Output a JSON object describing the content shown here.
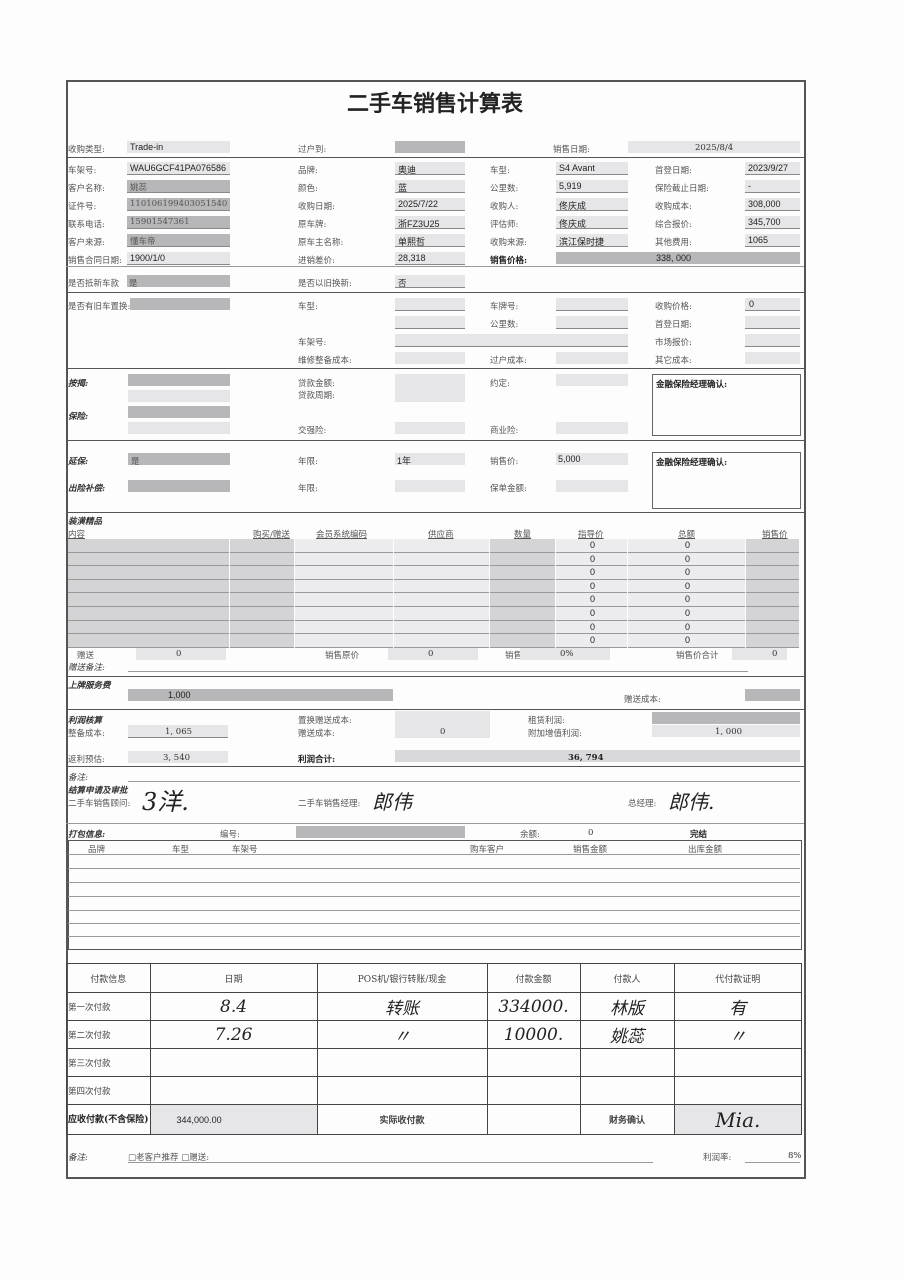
{
  "title": "二手车销售计算表",
  "header": {
    "purchase_type_label": "收购类型:",
    "purchase_type": "Trade-in",
    "transfer_to_label": "过户到:",
    "sale_date_label": "销售日期:",
    "sale_date": "2025/8/4"
  },
  "vehicle": {
    "vin_label": "车架号:",
    "vin": "WAU6GCF41PA076586",
    "customer_label": "客户名称:",
    "customer": "姚蕊",
    "id_label": "证件号:",
    "id": "110106199403051540",
    "phone_label": "联系电话:",
    "phone": "15901547361",
    "source_label": "客户来源:",
    "source": "懂车帝",
    "contract_date_label": "销售合同日期:",
    "contract_date": "1900/1/0",
    "brand_label": "品牌:",
    "brand": "奥迪",
    "color_label": "颜色:",
    "color": "蓝",
    "purchase_date_label": "收购日期:",
    "purchase_date": "2025/7/22",
    "orig_plate_label": "原车牌:",
    "orig_plate": "浙FZ3U25",
    "orig_owner_label": "原车主名称:",
    "orig_owner": "单熙哲",
    "margin_label": "进销差价:",
    "margin": "28,318",
    "model_label": "车型:",
    "model": "S4 Avant",
    "mileage_label": "公里数:",
    "mileage": "5,919",
    "buyer_label": "收购人:",
    "buyer": "佟庆成",
    "appraiser_label": "评估师:",
    "appraiser": "佟庆成",
    "purchase_source_label": "收购来源:",
    "purchase_source": "滨江保时捷",
    "sale_price_label": "销售价格:",
    "sale_price": "338, 000",
    "first_reg_label": "首登日期:",
    "first_reg": "2023/9/27",
    "ins_expiry_label": "保险截止日期:",
    "ins_expiry": "-",
    "purchase_cost_label": "收购成本:",
    "purchase_cost": "308,000",
    "quote_label": "综合报价:",
    "quote": "345,700",
    "other_fee_label": "其他费用:",
    "other_fee": "1065",
    "offset_label": "是否抵新车款",
    "offset": "是",
    "tradein_new_label": "是否以旧换新:",
    "tradein_new": "否"
  },
  "old_car": {
    "has_label": "是否有旧车置换:",
    "model_label": "车型:",
    "plate_label": "车牌号:",
    "price_label": "收购价格:",
    "price": "0",
    "mileage_label": "公里数:",
    "first_reg_label": "首登日期:",
    "vin_label": "车架号:",
    "market_label": "市场报价:",
    "repair_label": "维修整备成本:",
    "transfer_label": "过户成本:",
    "other_label": "其它成本:"
  },
  "finance": {
    "mortgage_label": "按揭:",
    "loan_amount_label": "贷款金额:",
    "loan_term_label": "贷款周期:",
    "agreement_label": "约定:",
    "confirm_label": "金融保险经理确认:",
    "insurance_label": "保险:",
    "compulsory_label": "交强险:",
    "commercial_label": "商业险:",
    "warranty_label": "延保:",
    "warranty": "是",
    "years_label": "年限:",
    "years": "1年",
    "sale_price_label": "销售价:",
    "sale_price": "5,000",
    "claim_label": "出险补偿:",
    "policy_label": "保单金额:"
  },
  "decor": {
    "title": "装潢精品",
    "columns": [
      "内容",
      "购买/赠送",
      "会员系统编码",
      "供应商",
      "数量",
      "指导价",
      "总额",
      "销售价"
    ],
    "rows": [
      {
        "guide": "0",
        "total": "0"
      },
      {
        "guide": "0",
        "total": "0"
      },
      {
        "guide": "0",
        "total": "0"
      },
      {
        "guide": "0",
        "total": "0"
      },
      {
        "guide": "0",
        "total": "0"
      },
      {
        "guide": "0",
        "total": "0"
      },
      {
        "guide": "0",
        "total": "0"
      },
      {
        "guide": "0",
        "total": "0"
      }
    ],
    "gift_label": "赠送",
    "gift": "0",
    "orig_price_label": "销售原价",
    "orig_price": "0",
    "discount_label": "销售折扣",
    "discount": "0%",
    "total_label": "销售价合计",
    "total": "0",
    "gift_note_label": "赠送备注:"
  },
  "plate_service": {
    "title": "上牌服务费",
    "value": "1,000",
    "gift_cost_label": "赠送成本:"
  },
  "profit": {
    "title": "利润核算",
    "prep_cost_label": "整备成本:",
    "prep_cost": "1, 065",
    "swap_gift_label": "置换赠送成本:",
    "gift_cost_label": "赠送成本:",
    "gift_cost": "0",
    "lease_label": "租赁利润:",
    "addon_label": "附加增值利润:",
    "addon": "1, 000",
    "rebate_label": "返利预估:",
    "rebate": "3, 540",
    "total_label": "利润合计:",
    "total": "36, 794"
  },
  "approval": {
    "note_label": "备注:",
    "title": "结算申请及审批",
    "advisor_label": "二手车销售顾问:",
    "advisor_sig": "3洋.",
    "manager_label": "二手车销售经理:",
    "manager_sig": "郎伟",
    "gm_label": "总经理:",
    "gm_sig": "郎伟."
  },
  "package": {
    "title": "打包信息:",
    "no_label": "编号:",
    "balance_label": "余额:",
    "balance": "0",
    "status": "完结",
    "columns": [
      "品牌",
      "车型",
      "车架号",
      "购车客户",
      "销售金额",
      "出库金额"
    ]
  },
  "payment": {
    "columns": [
      "付款信息",
      "日期",
      "POS机/银行转账/现金",
      "付款金额",
      "付款人",
      "代付款证明"
    ],
    "rows": [
      {
        "label": "第一次付款",
        "date": "8.4",
        "method": "转账",
        "amount": "334000.",
        "payer": "林版",
        "proof": "有"
      },
      {
        "label": "第二次付款",
        "date": "7.26",
        "method": "〃",
        "amount": "10000.",
        "payer": "姚蕊",
        "proof": "〃"
      },
      {
        "label": "第三次付款"
      },
      {
        "label": "第四次付款"
      }
    ],
    "receivable_label": "应收付款(不含保险)",
    "receivable": "344,000.00",
    "actual_label": "实际收付款",
    "finance_confirm_label": "财务确认",
    "finance_sig": "Mia."
  },
  "footer": {
    "note_label": "备注:",
    "options": "□老客户推荐  □赠送:",
    "margin_label": "利润率:",
    "margin": "8%"
  }
}
